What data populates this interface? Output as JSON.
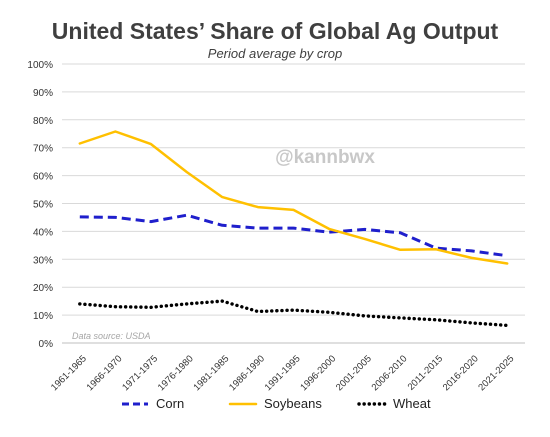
{
  "chart_data": {
    "type": "line",
    "title": "United States’ Share of Global Ag Output",
    "subtitle": "Period average by crop",
    "watermark": "@kannbwx",
    "source_note": "Data source: USDA",
    "x": [
      "1961-1965",
      "1966-1970",
      "1971-1975",
      "1976-1980",
      "1981-1985",
      "1986-1990",
      "1991-1995",
      "1996-2000",
      "2001-2005",
      "2006-2010",
      "2011-2015",
      "2016-2020",
      "2021-2025"
    ],
    "y_ticks": [
      "0%",
      "10%",
      "20%",
      "30%",
      "40%",
      "50%",
      "60%",
      "70%",
      "80%",
      "90%",
      "100%"
    ],
    "ylim": [
      0,
      100
    ],
    "grid": "horizontal",
    "legend_position": "bottom",
    "series": [
      {
        "name": "Corn",
        "color": "#1f1fcc",
        "style": "dashed",
        "values": [
          45.2,
          45.0,
          43.5,
          45.8,
          42.2,
          41.2,
          41.2,
          39.7,
          40.7,
          39.5,
          34.0,
          33.0,
          31.3
        ]
      },
      {
        "name": "Soybeans",
        "color": "#ffc000",
        "style": "solid",
        "values": [
          71.5,
          75.8,
          71.3,
          61.3,
          52.3,
          48.7,
          47.7,
          40.9,
          37.3,
          33.4,
          33.6,
          30.5,
          28.5
        ]
      },
      {
        "name": "Wheat",
        "color": "#000000",
        "style": "dotted",
        "values": [
          14.0,
          13.0,
          12.8,
          14.0,
          15.0,
          11.3,
          11.8,
          11.0,
          9.7,
          9.0,
          8.3,
          7.2,
          6.3
        ]
      }
    ]
  }
}
